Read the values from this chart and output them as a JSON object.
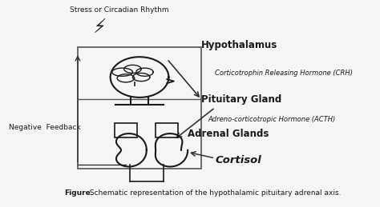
{
  "bg_color": "#f5f5f5",
  "labels": {
    "stress": "Stress or Circadian Rhythm",
    "hypothalamus": "Hypothalamus",
    "crh": "Corticotrophin Releasing Hormone (CRH)",
    "pituitary": "Pituitary Gland",
    "acth": "Adreno-corticotropic Hormone (ACTH)",
    "adrenal": "Adrenal Glands",
    "cortisol": "Cortisol",
    "feedback": "Negative  Feedback"
  },
  "caption_bold": "Figure.",
  "caption_rest": "  Schematic representation of the hypothalamic pituitary adrenal axis.",
  "colors": {
    "black": "#1a1a1a",
    "box": "#555555",
    "arrow": "#333333"
  }
}
